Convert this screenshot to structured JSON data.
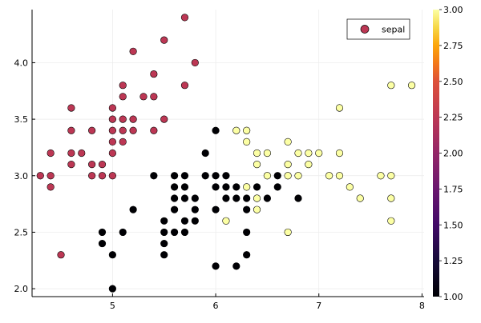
{
  "chart_data": {
    "type": "scatter",
    "title": "",
    "xlabel": "",
    "ylabel": "",
    "xlim": [
      4.22,
      8.02
    ],
    "ylim": [
      1.93,
      4.47
    ],
    "x_ticks": [
      "5",
      "6",
      "7",
      "8"
    ],
    "y_ticks": [
      "2.0",
      "2.5",
      "3.0",
      "3.5",
      "4.0"
    ],
    "grid": true,
    "legend": {
      "placement": "top-right",
      "entries": [
        "sepal"
      ],
      "marker_color": "#bc3754"
    },
    "colorbar": {
      "colormap": "inferno",
      "range": [
        1.0,
        3.0
      ],
      "ticks": [
        "1.00",
        "1.25",
        "1.50",
        "1.75",
        "2.00",
        "2.25",
        "2.50",
        "2.75",
        "3.00"
      ]
    },
    "series": [
      {
        "name": "sepal",
        "points": [
          [
            5.7,
            4.4,
            2
          ],
          [
            5.5,
            4.2,
            2
          ],
          [
            5.2,
            4.1,
            2
          ],
          [
            5.8,
            4.0,
            2
          ],
          [
            5.4,
            3.9,
            2
          ],
          [
            5.1,
            3.8,
            2
          ],
          [
            5.7,
            3.8,
            2
          ],
          [
            5.1,
            3.7,
            2
          ],
          [
            5.3,
            3.7,
            2
          ],
          [
            5.4,
            3.7,
            2
          ],
          [
            4.6,
            3.6,
            2
          ],
          [
            5.0,
            3.6,
            2
          ],
          [
            5.0,
            3.5,
            2
          ],
          [
            5.1,
            3.5,
            2
          ],
          [
            5.2,
            3.5,
            2
          ],
          [
            5.5,
            3.5,
            2
          ],
          [
            4.6,
            3.4,
            2
          ],
          [
            4.8,
            3.4,
            2
          ],
          [
            5.0,
            3.4,
            2
          ],
          [
            5.1,
            3.4,
            2
          ],
          [
            5.2,
            3.4,
            2
          ],
          [
            5.4,
            3.4,
            2
          ],
          [
            5.0,
            3.3,
            2
          ],
          [
            5.1,
            3.3,
            2
          ],
          [
            4.4,
            3.2,
            2
          ],
          [
            4.6,
            3.2,
            2
          ],
          [
            4.7,
            3.2,
            2
          ],
          [
            5.0,
            3.2,
            2
          ],
          [
            4.6,
            3.1,
            2
          ],
          [
            4.8,
            3.1,
            2
          ],
          [
            4.9,
            3.1,
            2
          ],
          [
            4.3,
            3.0,
            2
          ],
          [
            4.4,
            3.0,
            2
          ],
          [
            4.8,
            3.0,
            2
          ],
          [
            4.9,
            3.0,
            2
          ],
          [
            5.0,
            3.0,
            2
          ],
          [
            4.4,
            2.9,
            2
          ],
          [
            4.5,
            2.3,
            2
          ],
          [
            6.0,
            3.4,
            1
          ],
          [
            5.9,
            3.2,
            1
          ],
          [
            5.4,
            3.0,
            1
          ],
          [
            5.6,
            3.0,
            1
          ],
          [
            5.7,
            3.0,
            1
          ],
          [
            5.9,
            3.0,
            1
          ],
          [
            6.0,
            3.0,
            1
          ],
          [
            6.1,
            3.0,
            1
          ],
          [
            6.6,
            3.0,
            1
          ],
          [
            5.6,
            2.9,
            1
          ],
          [
            5.7,
            2.9,
            1
          ],
          [
            6.0,
            2.9,
            1
          ],
          [
            6.1,
            2.9,
            1
          ],
          [
            6.2,
            2.9,
            1
          ],
          [
            6.4,
            2.9,
            1
          ],
          [
            6.6,
            2.9,
            1
          ],
          [
            5.6,
            2.8,
            1
          ],
          [
            5.7,
            2.8,
            1
          ],
          [
            5.8,
            2.8,
            1
          ],
          [
            6.1,
            2.8,
            1
          ],
          [
            6.2,
            2.8,
            1
          ],
          [
            6.3,
            2.8,
            1
          ],
          [
            6.5,
            2.8,
            1
          ],
          [
            6.8,
            2.8,
            1
          ],
          [
            5.2,
            2.7,
            1
          ],
          [
            5.6,
            2.7,
            1
          ],
          [
            5.8,
            2.7,
            1
          ],
          [
            6.0,
            2.7,
            1
          ],
          [
            6.3,
            2.7,
            1
          ],
          [
            5.5,
            2.6,
            1
          ],
          [
            5.7,
            2.6,
            1
          ],
          [
            5.8,
            2.6,
            1
          ],
          [
            4.9,
            2.5,
            1
          ],
          [
            5.1,
            2.5,
            1
          ],
          [
            5.5,
            2.5,
            1
          ],
          [
            5.6,
            2.5,
            1
          ],
          [
            5.7,
            2.5,
            1
          ],
          [
            6.3,
            2.5,
            1
          ],
          [
            4.9,
            2.4,
            1
          ],
          [
            5.5,
            2.4,
            1
          ],
          [
            5.0,
            2.3,
            1
          ],
          [
            5.5,
            2.3,
            1
          ],
          [
            6.3,
            2.3,
            1
          ],
          [
            6.0,
            2.2,
            1
          ],
          [
            6.2,
            2.2,
            1
          ],
          [
            5.0,
            2.0,
            1
          ],
          [
            7.7,
            3.8,
            3
          ],
          [
            7.9,
            3.8,
            3
          ],
          [
            7.2,
            3.6,
            3
          ],
          [
            6.2,
            3.4,
            3
          ],
          [
            6.3,
            3.4,
            3
          ],
          [
            6.3,
            3.3,
            3
          ],
          [
            6.7,
            3.3,
            3
          ],
          [
            6.4,
            3.2,
            3
          ],
          [
            6.5,
            3.2,
            3
          ],
          [
            6.8,
            3.2,
            3
          ],
          [
            6.9,
            3.2,
            3
          ],
          [
            7.0,
            3.2,
            3
          ],
          [
            7.2,
            3.2,
            3
          ],
          [
            6.4,
            3.1,
            3
          ],
          [
            6.7,
            3.1,
            3
          ],
          [
            6.9,
            3.1,
            3
          ],
          [
            6.5,
            3.0,
            3
          ],
          [
            6.7,
            3.0,
            3
          ],
          [
            6.8,
            3.0,
            3
          ],
          [
            7.1,
            3.0,
            3
          ],
          [
            7.2,
            3.0,
            3
          ],
          [
            7.6,
            3.0,
            3
          ],
          [
            7.7,
            3.0,
            3
          ],
          [
            6.3,
            2.9,
            3
          ],
          [
            7.3,
            2.9,
            3
          ],
          [
            6.4,
            2.8,
            3
          ],
          [
            7.4,
            2.8,
            3
          ],
          [
            7.7,
            2.8,
            3
          ],
          [
            6.4,
            2.7,
            3
          ],
          [
            6.1,
            2.6,
            3
          ],
          [
            7.7,
            2.6,
            3
          ],
          [
            6.7,
            2.5,
            3
          ]
        ]
      }
    ]
  }
}
